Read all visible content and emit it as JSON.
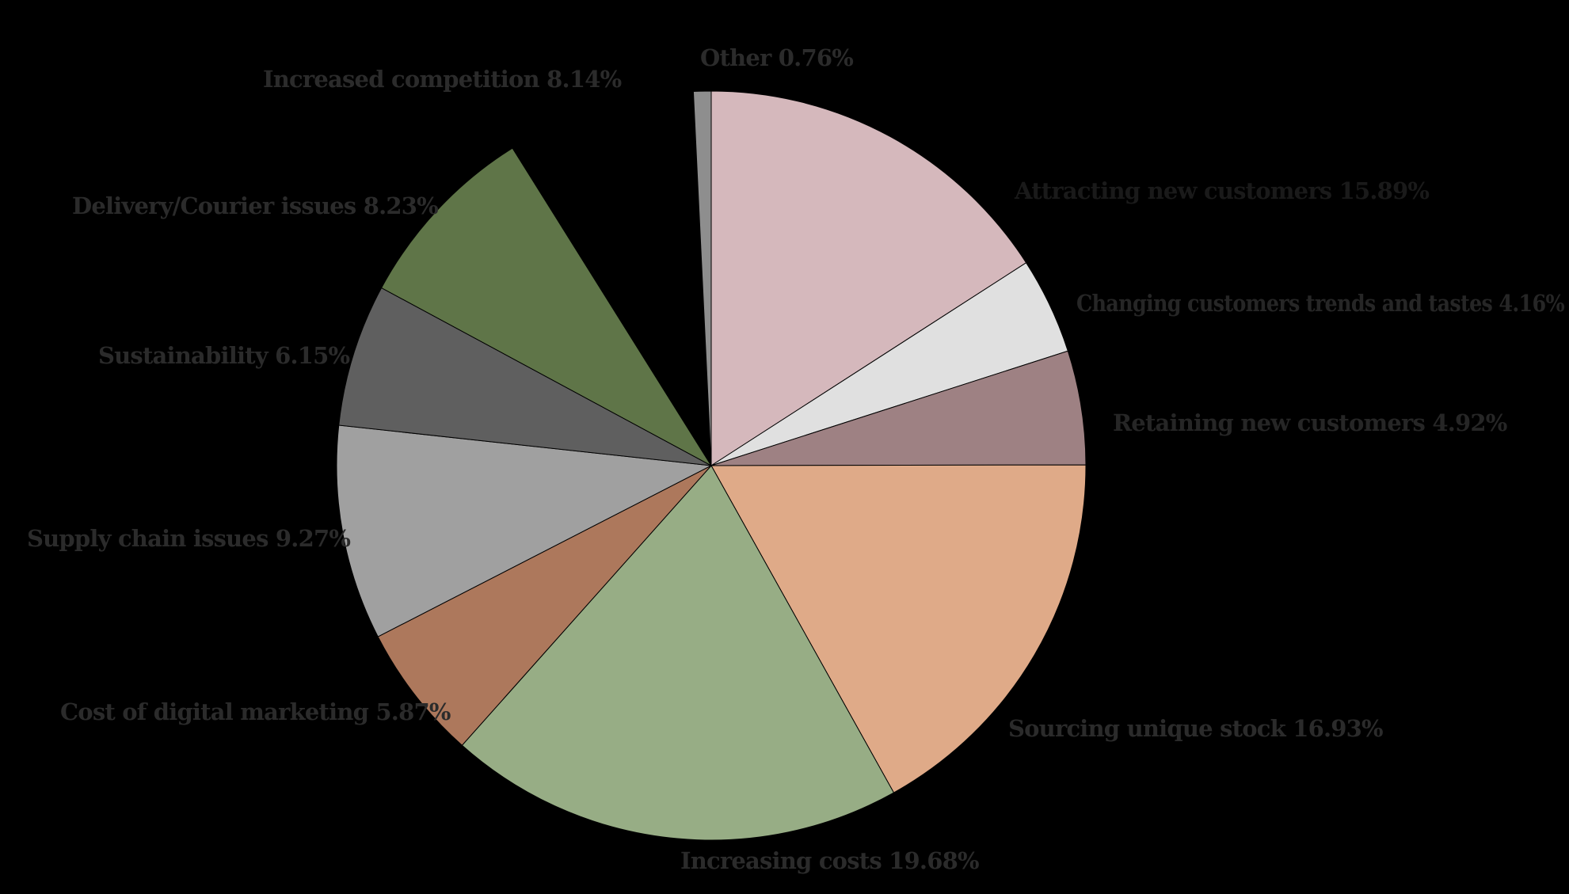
{
  "chart_data": {
    "type": "pie",
    "title": "",
    "start_angle_deg": 0,
    "direction": "clockwise",
    "slices": [
      {
        "label": "Attracting new customers",
        "value": 15.89,
        "display": "Attracting new customers 15.89%",
        "color": "#d5b8bc",
        "label_color": "#1a1a1a"
      },
      {
        "label": "Changing customers trends and tastes",
        "value": 4.16,
        "display": "Changing customers trends and tastes 4.16%",
        "color": "#e0e0e0",
        "label_color": "#262626"
      },
      {
        "label": "Retaining new customers",
        "value": 4.92,
        "display": "Retaining new customers 4.92%",
        "color": "#9e8183",
        "label_color": "#262626"
      },
      {
        "label": "Sourcing unique stock",
        "value": 16.93,
        "display": "Sourcing unique stock 16.93%",
        "color": "#dfaa88",
        "label_color": "#2b2b2b"
      },
      {
        "label": "Increasing costs",
        "value": 19.68,
        "display": "Increasing costs 19.68%",
        "color": "#97ad85",
        "label_color": "#2b2b2b"
      },
      {
        "label": "Cost of digital marketing",
        "value": 5.87,
        "display": "Cost of digital marketing 5.87%",
        "color": "#ad785c",
        "label_color": "#2b2b2b"
      },
      {
        "label": "Supply chain issues",
        "value": 9.27,
        "display": "Supply chain issues 9.27%",
        "color": "#a0a0a0",
        "label_color": "#2b2b2b"
      },
      {
        "label": "Sustainability",
        "value": 6.15,
        "display": "Sustainability 6.15%",
        "color": "#5f5f5f",
        "label_color": "#2b2b2b"
      },
      {
        "label": "Delivery/Courier issues",
        "value": 8.23,
        "display": "Delivery/Courier issues 8.23%",
        "color": "#5f7548",
        "label_color": "#2b2b2b"
      },
      {
        "label": "Increased competition",
        "value": 8.14,
        "display": "Increased competition 8.14%",
        "color": "#000000",
        "label_color": "#2b2b2b"
      },
      {
        "label": "Other",
        "value": 0.76,
        "display": "Other 0.76%",
        "color": "#8e8e8e",
        "label_color": "#2b2b2b"
      }
    ],
    "background": "#000000"
  }
}
